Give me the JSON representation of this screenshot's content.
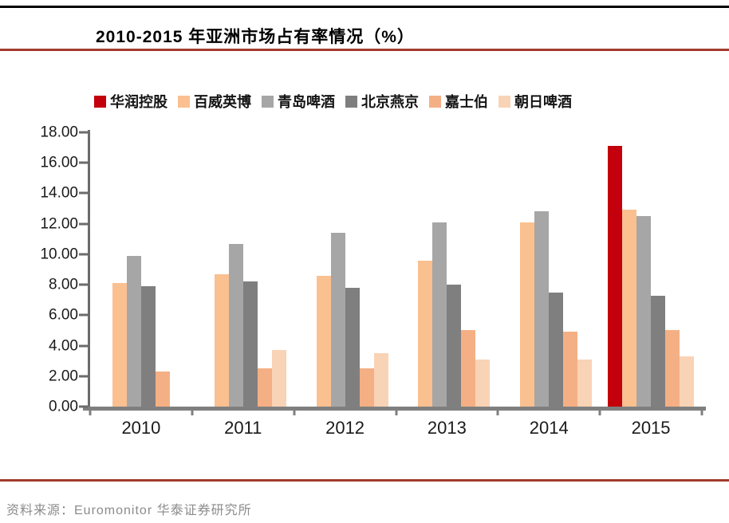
{
  "page": {
    "title": "2010-2015 年亚洲市场占有率情况（%）",
    "source_note": "资料来源：Euromonitor 华泰证券研究所"
  },
  "colors": {
    "top_rule": "#000000",
    "accent_rule": "#a23b2e",
    "axis": "#7f7f7f",
    "tick": "#6b6b6b"
  },
  "chart_data": {
    "type": "bar",
    "title": "2010-2015 年亚洲市场占有率情况（%）",
    "categories": [
      "2010",
      "2011",
      "2012",
      "2013",
      "2014",
      "2015"
    ],
    "series": [
      {
        "name": "华润控股",
        "color": "#c3000c",
        "values": [
          null,
          null,
          null,
          null,
          null,
          17.1
        ]
      },
      {
        "name": "百威英博",
        "color": "#fac090",
        "values": [
          8.1,
          8.7,
          8.6,
          9.6,
          12.1,
          12.9
        ]
      },
      {
        "name": "青岛啤酒",
        "color": "#a6a6a6",
        "values": [
          9.9,
          10.7,
          11.4,
          12.1,
          12.8,
          12.5
        ]
      },
      {
        "name": "北京燕京",
        "color": "#7f7f7f",
        "values": [
          7.9,
          8.2,
          7.8,
          8.0,
          7.5,
          7.3
        ]
      },
      {
        "name": "嘉士伯",
        "color": "#f4b084",
        "values": [
          2.3,
          2.5,
          2.5,
          5.0,
          4.9,
          5.0
        ]
      },
      {
        "name": "朝日啤酒",
        "color": "#f9d3b6",
        "values": [
          null,
          3.7,
          3.5,
          3.1,
          3.1,
          3.3
        ]
      }
    ],
    "ylim": [
      0,
      18
    ],
    "ytick_step": 2,
    "ytick_decimals": 2,
    "legend_position": "top",
    "grid": false,
    "xlabel": "",
    "ylabel": ""
  }
}
